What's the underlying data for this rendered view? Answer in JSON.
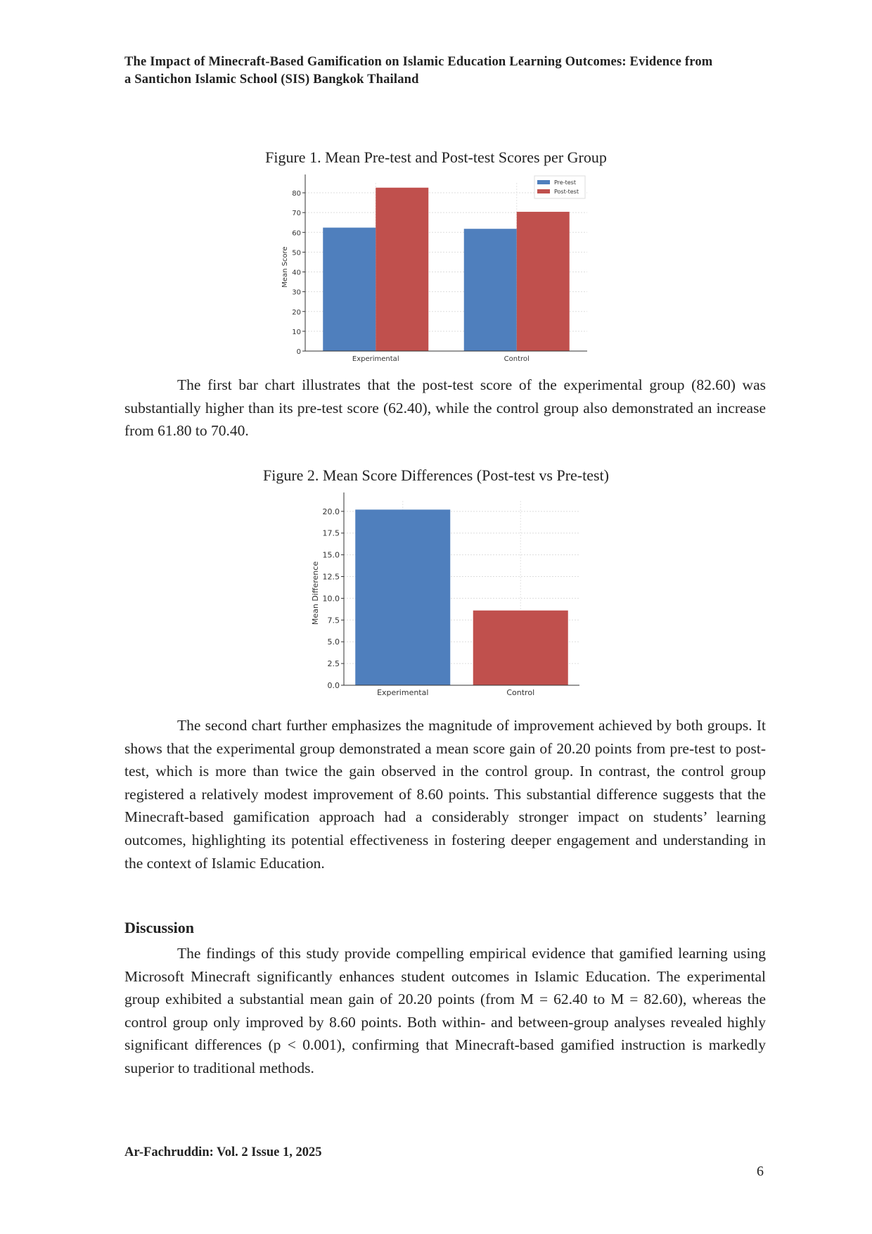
{
  "header": {
    "line1": "The Impact of Minecraft-Based Gamification on Islamic Education Learning Outcomes: Evidence from",
    "line2": "a Santichon Islamic School (SIS) Bangkok Thailand"
  },
  "figure1": {
    "caption": "Figure 1. Mean Pre-test and Post-test Scores per Group"
  },
  "figure2": {
    "caption": "Figure 2. Mean Score Differences (Post-test vs Pre-test)"
  },
  "paragraph1": "The first bar chart illustrates that the post-test score of the experimental group (82.60) was substantially higher than its pre-test score (62.40), while the control group also demonstrated an increase from 61.80 to 70.40.",
  "paragraph2": "The second chart further emphasizes the magnitude of improvement achieved by both groups. It shows that the experimental group demonstrated a mean score gain of 20.20 points from pre-test to post-test, which is more than twice the gain observed in the control group. In contrast, the control group registered a relatively modest improvement of 8.60 points. This substantial difference suggests that the Minecraft-based gamification approach had a considerably stronger impact on students’ learning outcomes, highlighting its potential effectiveness in fostering deeper engagement and understanding in the context of Islamic Education.",
  "discussion": {
    "heading": "Discussion",
    "text": "The findings of this study provide compelling empirical evidence that gamified learning using Microsoft Minecraft significantly enhances student outcomes in Islamic Education. The experimental group exhibited a substantial mean gain of 20.20 points (from M = 62.40 to M = 82.60), whereas the control group only improved by 8.60 points. Both within- and between-group analyses revealed highly significant differences (p < 0.001), confirming that Minecraft-based gamified instruction is markedly superior to traditional methods."
  },
  "footer": {
    "journal": "Ar-Fachruddin: Vol. 2 Issue 1, 2025",
    "page": "6"
  },
  "chart_data": [
    {
      "type": "bar",
      "categories": [
        "Experimental",
        "Control"
      ],
      "series": [
        {
          "name": "Pre-test",
          "values": [
            62.4,
            61.8
          ],
          "color": "#4f7fbd"
        },
        {
          "name": "Post-test",
          "values": [
            82.6,
            70.4
          ],
          "color": "#c0504d"
        }
      ],
      "ylabel": "Mean Score",
      "ylim": [
        0,
        85
      ],
      "yticks": [
        "0",
        "10",
        "20",
        "30",
        "40",
        "50",
        "60",
        "70",
        "80"
      ],
      "grid": true,
      "legend": "top-right"
    },
    {
      "type": "bar",
      "categories": [
        "Experimental",
        "Control"
      ],
      "values": [
        20.2,
        8.6
      ],
      "colors": [
        "#4f7fbd",
        "#c0504d"
      ],
      "ylabel": "Mean Difference",
      "ylim": [
        0,
        21.2
      ],
      "yticks": [
        "0.0",
        "2.5",
        "5.0",
        "7.5",
        "10.0",
        "12.5",
        "15.0",
        "17.5",
        "20.0"
      ],
      "grid": true
    }
  ]
}
